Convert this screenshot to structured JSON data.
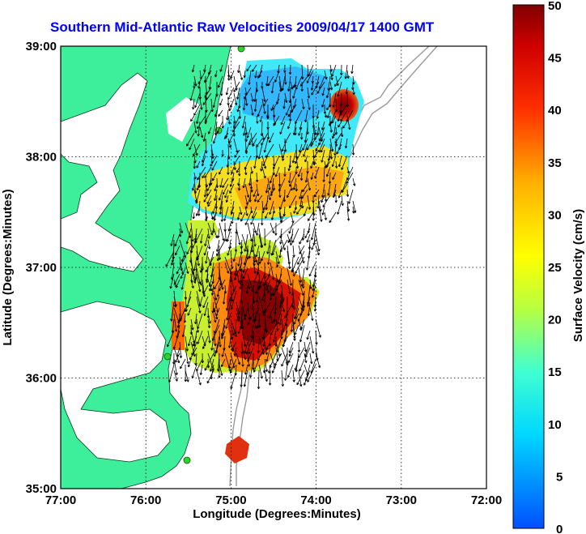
{
  "title": "Southern Mid-Atlantic Raw Velocities 2009/04/17 1400 GMT",
  "xlabel": "Longitude (Degrees:Minutes)",
  "ylabel": "Latitude (Degrees:Minutes)",
  "colorbar": {
    "label": "Surface Velocity (cm/s)",
    "ticks": [
      "50",
      "45",
      "40",
      "35",
      "30",
      "25",
      "20",
      "15",
      "10",
      "5",
      "0"
    ],
    "range": [
      0,
      50
    ]
  },
  "x_ticks": [
    "77:00",
    "76:00",
    "75:00",
    "74:00",
    "73:00",
    "72:00"
  ],
  "y_ticks": [
    "39:00",
    "38:00",
    "37:00",
    "36:00",
    "35:00"
  ],
  "colors": {
    "land": "#3dee9a",
    "water": "#ffffff",
    "bathymetry": "#9a9a9a",
    "title": "#0000ff",
    "station": "#2ad42a"
  }
}
